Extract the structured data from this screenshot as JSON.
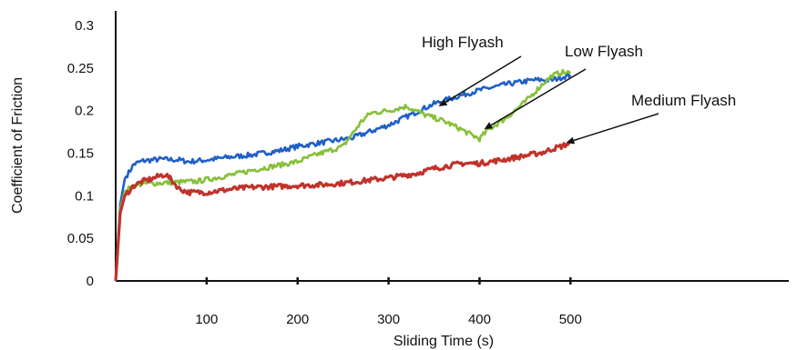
{
  "chart_data": {
    "type": "line",
    "xlabel": "Sliding Time (s)",
    "ylabel": "Coefficient of Friction",
    "xlim": [
      0,
      740
    ],
    "ylim": [
      0,
      0.3
    ],
    "x_ticks": [
      {
        "value": 100,
        "label": "100"
      },
      {
        "value": 200,
        "label": "200"
      },
      {
        "value": 300,
        "label": "300"
      },
      {
        "value": 400,
        "label": "400"
      },
      {
        "value": 500,
        "label": "500"
      }
    ],
    "y_ticks": [
      {
        "value": 0,
        "label": "0"
      },
      {
        "value": 0.05,
        "label": "0.05"
      },
      {
        "value": 0.1,
        "label": "0.1"
      },
      {
        "value": 0.15,
        "label": "0.15"
      },
      {
        "value": 0.2,
        "label": "0.2"
      },
      {
        "value": 0.25,
        "label": "0.25"
      },
      {
        "value": 0.3,
        "label": "0.3"
      }
    ],
    "grid": false,
    "series": [
      {
        "name": "High Flyash",
        "color": "#1f5fc7",
        "x": [
          0,
          5,
          10,
          20,
          30,
          50,
          70,
          80,
          100,
          130,
          150,
          180,
          200,
          230,
          260,
          300,
          330,
          350,
          380,
          400,
          430,
          460,
          480,
          500
        ],
        "y": [
          0,
          0.09,
          0.12,
          0.137,
          0.141,
          0.143,
          0.142,
          0.14,
          0.142,
          0.146,
          0.148,
          0.153,
          0.158,
          0.163,
          0.168,
          0.183,
          0.198,
          0.208,
          0.218,
          0.224,
          0.231,
          0.236,
          0.236,
          0.242
        ]
      },
      {
        "name": "Low Flyash",
        "color": "#86c03a",
        "x": [
          0,
          5,
          10,
          20,
          30,
          50,
          70,
          90,
          100,
          130,
          150,
          180,
          200,
          220,
          250,
          270,
          280,
          300,
          320,
          340,
          360,
          380,
          390,
          400,
          410,
          430,
          450,
          470,
          480,
          490,
          500
        ],
        "y": [
          0,
          0.085,
          0.105,
          0.112,
          0.114,
          0.115,
          0.116,
          0.117,
          0.119,
          0.125,
          0.13,
          0.136,
          0.14,
          0.148,
          0.158,
          0.187,
          0.197,
          0.2,
          0.205,
          0.195,
          0.188,
          0.178,
          0.172,
          0.167,
          0.178,
          0.192,
          0.21,
          0.232,
          0.241,
          0.245,
          0.244
        ]
      },
      {
        "name": "Medium Flyash",
        "color": "#c0332b",
        "x": [
          0,
          5,
          10,
          20,
          30,
          40,
          50,
          55,
          60,
          70,
          80,
          100,
          130,
          150,
          180,
          200,
          230,
          260,
          300,
          330,
          350,
          380,
          400,
          430,
          450,
          470,
          480,
          490,
          500
        ],
        "y": [
          0,
          0.08,
          0.1,
          0.112,
          0.117,
          0.12,
          0.124,
          0.125,
          0.12,
          0.108,
          0.104,
          0.104,
          0.108,
          0.11,
          0.111,
          0.112,
          0.113,
          0.116,
          0.121,
          0.126,
          0.132,
          0.138,
          0.138,
          0.143,
          0.147,
          0.151,
          0.155,
          0.158,
          0.162
        ]
      }
    ],
    "annotations": [
      {
        "text": "High Flyash",
        "series": "High Flyash",
        "arrow_to": {
          "x": 355,
          "y": 0.205
        }
      },
      {
        "text": "Low Flyash",
        "series": "Low Flyash",
        "arrow_to": {
          "x": 405,
          "y": 0.178
        }
      },
      {
        "text": "Medium Flyash",
        "series": "Medium Flyash",
        "arrow_to": {
          "x": 495,
          "y": 0.162
        }
      }
    ]
  }
}
